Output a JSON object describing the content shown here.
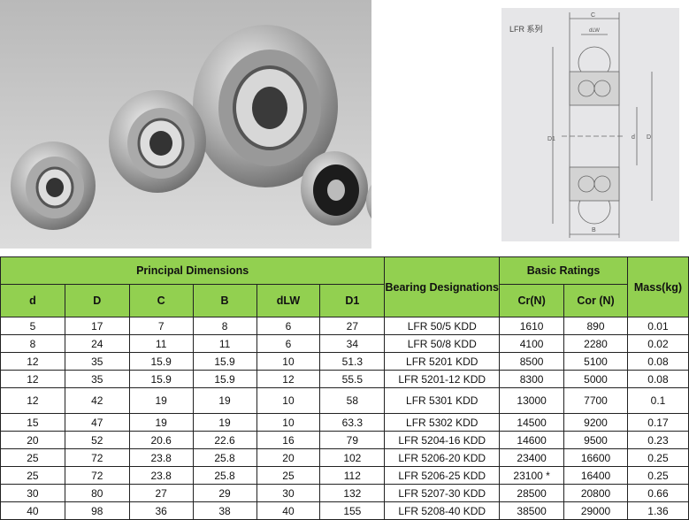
{
  "diagram": {
    "title": "LFR 系列",
    "labels": [
      "C",
      "dLW",
      "D1",
      "d",
      "D",
      "B"
    ]
  },
  "colors": {
    "header_bg": "#92d050"
  },
  "table": {
    "group_headers": {
      "principal": "Principal Dimensions",
      "designation": "Bearing Designations",
      "ratings": "Basic Ratings",
      "mass": "Mass(kg)"
    },
    "columns": [
      "d",
      "D",
      "C",
      "B",
      "dLW",
      "D1",
      "Cr(N)",
      "Cor (N)"
    ],
    "rows": [
      [
        "5",
        "17",
        "7",
        "8",
        "6",
        "27",
        "LFR 50/5 KDD",
        "1610",
        "890",
        "0.01"
      ],
      [
        "8",
        "24",
        "11",
        "11",
        "6",
        "34",
        "LFR 50/8 KDD",
        "4100",
        "2280",
        "0.02"
      ],
      [
        "12",
        "35",
        "15.9",
        "15.9",
        "10",
        "51.3",
        "LFR 5201 KDD",
        "8500",
        "5100",
        "0.08"
      ],
      [
        "12",
        "35",
        "15.9",
        "15.9",
        "12",
        "55.5",
        "LFR 5201-12 KDD",
        "8300",
        "5000",
        "0.08"
      ],
      [
        "12",
        "42",
        "19",
        "19",
        "10",
        "58",
        "LFR 5301 KDD",
        "13000",
        "7700",
        "0.1"
      ],
      [
        "15",
        "47",
        "19",
        "19",
        "10",
        "63.3",
        "LFR 5302 KDD",
        "14500",
        "9200",
        "0.17"
      ],
      [
        "20",
        "52",
        "20.6",
        "22.6",
        "16",
        "79",
        "LFR 5204-16 KDD",
        "14600",
        "9500",
        "0.23"
      ],
      [
        "25",
        "72",
        "23.8",
        "25.8",
        "20",
        "102",
        "LFR 5206-20 KDD",
        "23400",
        "16600",
        "0.25"
      ],
      [
        "25",
        "72",
        "23.8",
        "25.8",
        "25",
        "112",
        "LFR 5206-25 KDD",
        "23100 *",
        "16400",
        "0.25"
      ],
      [
        "30",
        "80",
        "27",
        "29",
        "30",
        "132",
        "LFR 5207-30 KDD",
        "28500",
        "20800",
        "0.66"
      ],
      [
        "40",
        "98",
        "36",
        "38",
        "40",
        "155",
        "LFR 5208-40 KDD",
        "38500",
        "29000",
        "1.36"
      ]
    ]
  }
}
